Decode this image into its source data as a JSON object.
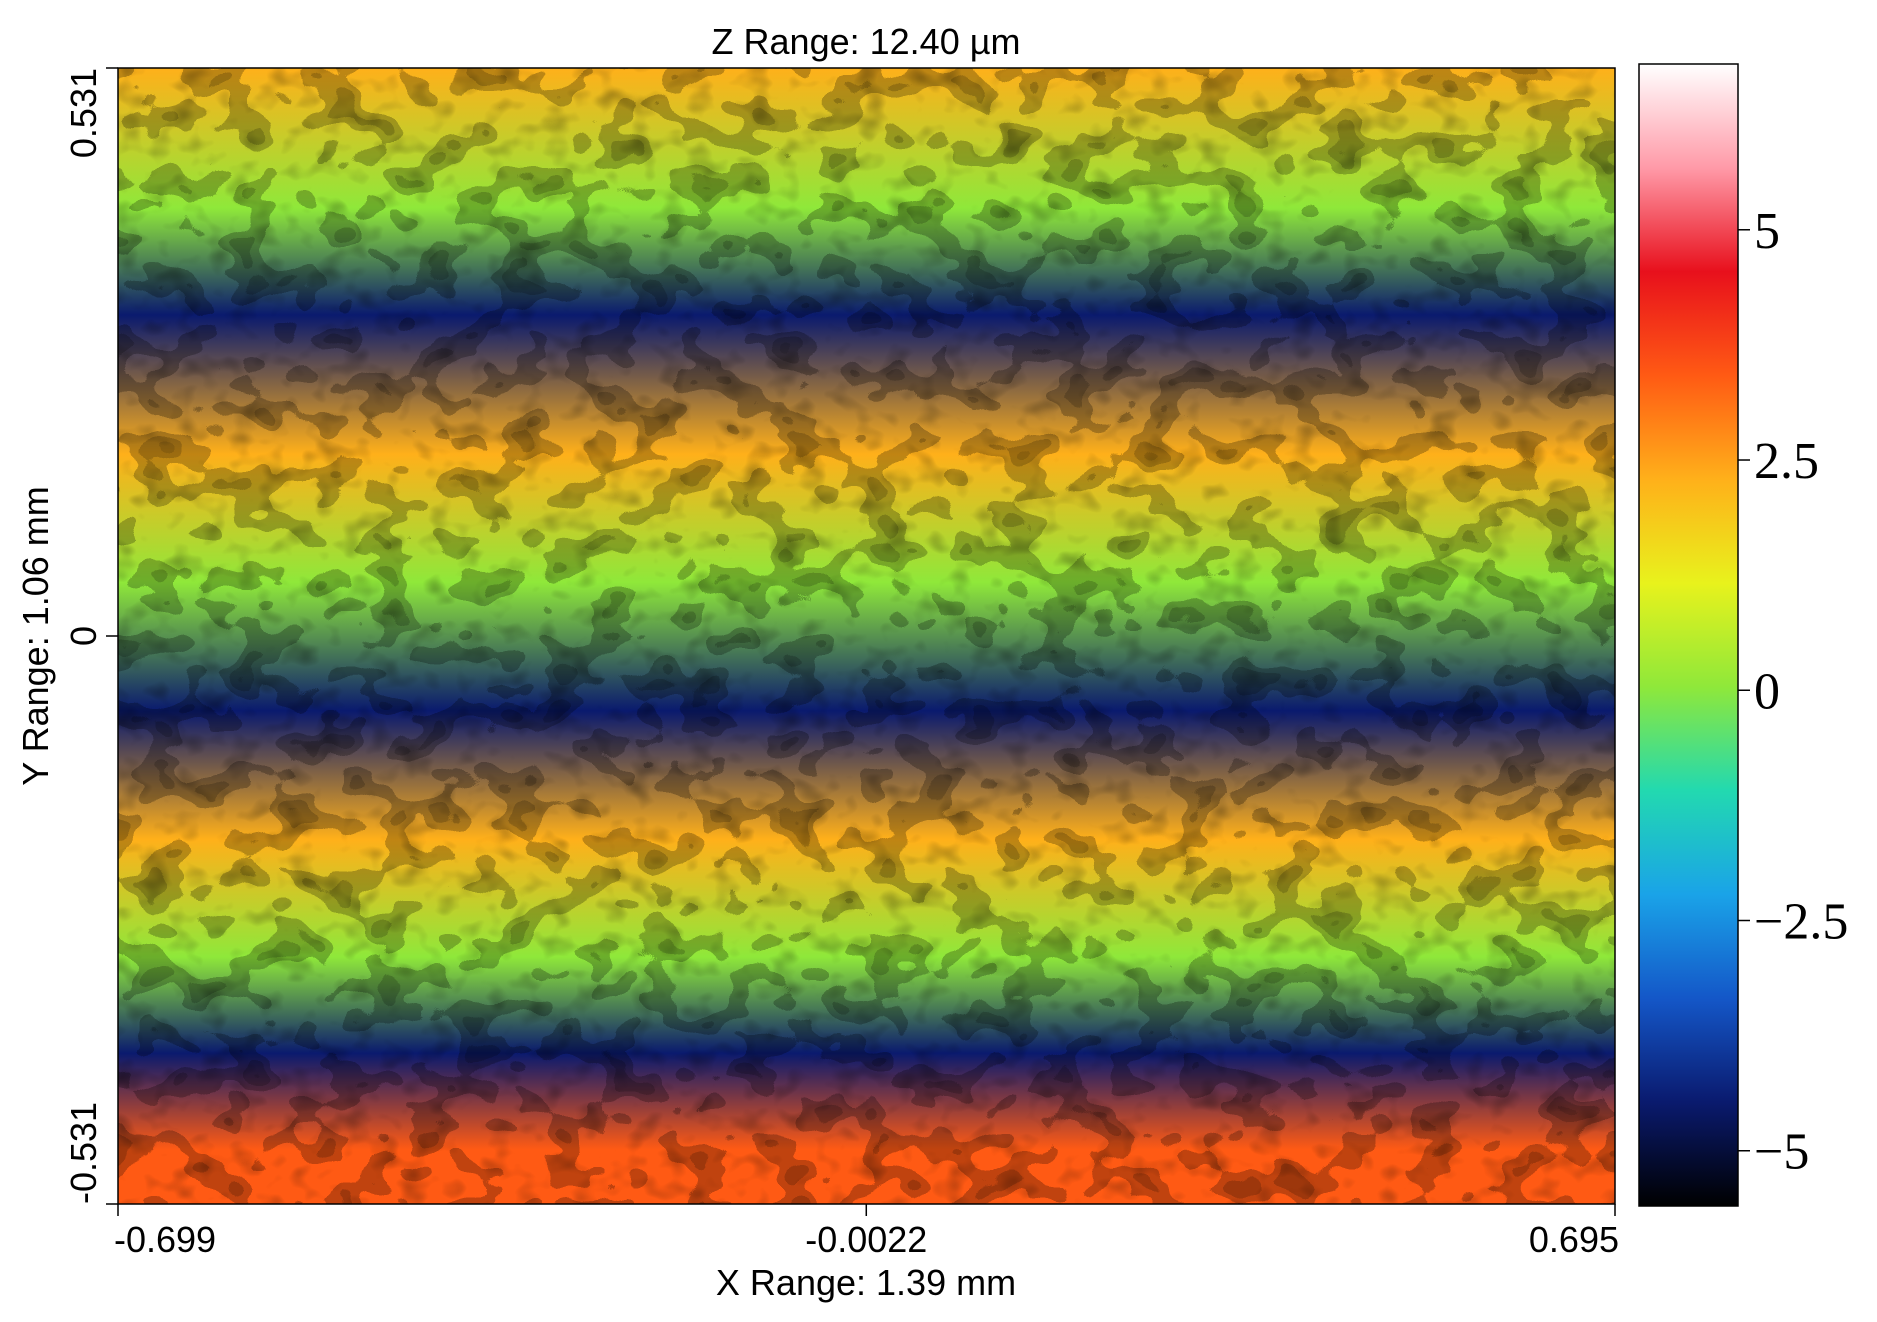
{
  "chart_data": {
    "type": "heatmap",
    "title": "Z Range:  12.40 µm",
    "xlabel": "X Range:  1.39 mm",
    "ylabel": "Y Range:  1.06 mm",
    "x_ticks": [
      {
        "value": -0.699,
        "label": "-0.699"
      },
      {
        "value": -0.0022,
        "label": "-0.0022"
      },
      {
        "value": 0.695,
        "label": "0.695"
      }
    ],
    "y_ticks": [
      {
        "value": 0.531,
        "label": "0.531"
      },
      {
        "value": 0,
        "label": "0"
      },
      {
        "value": -0.531,
        "label": "-0.531"
      }
    ],
    "xlim": [
      -0.699,
      0.695
    ],
    "ylim": [
      -0.531,
      0.531
    ],
    "colorbar": {
      "range": [
        -5.6,
        6.8
      ],
      "ticks": [
        {
          "value": 5,
          "label": "5"
        },
        {
          "value": 2.5,
          "label": "2.5"
        },
        {
          "value": 0,
          "label": "0"
        },
        {
          "value": -2.5,
          "label": "−2.5"
        },
        {
          "value": -5,
          "label": "−5"
        }
      ],
      "colors": [
        "#000000",
        "#0a1a6e",
        "#1457c8",
        "#1aa3e8",
        "#22d9b0",
        "#8fe83a",
        "#e8f21c",
        "#ffb01a",
        "#ff5a14",
        "#e8101c",
        "#ff9aa8",
        "#ffffff"
      ]
    },
    "bands": {
      "description_units": "mm (y) vs height",
      "profile": [
        {
          "y": 0.531,
          "z": 2.5
        },
        {
          "y": 0.4,
          "z": 0.5
        },
        {
          "y": 0.3,
          "z": -4.0
        },
        {
          "y": 0.17,
          "z": 2.5
        },
        {
          "y": 0.05,
          "z": 0.0
        },
        {
          "y": -0.07,
          "z": -4.0
        },
        {
          "y": -0.19,
          "z": 2.5
        },
        {
          "y": -0.3,
          "z": 0.0
        },
        {
          "y": -0.39,
          "z": -4.0
        },
        {
          "y": -0.48,
          "z": 3.5
        },
        {
          "y": -0.531,
          "z": 3.5
        }
      ]
    }
  }
}
